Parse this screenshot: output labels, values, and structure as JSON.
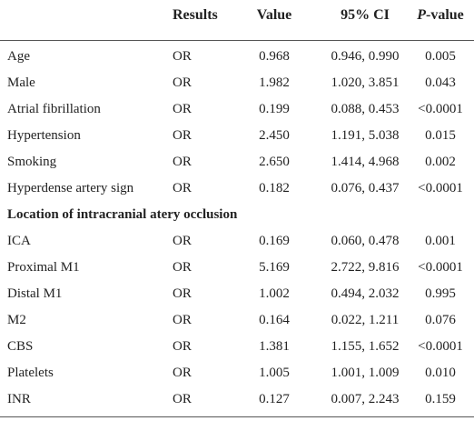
{
  "table": {
    "header": [
      "Results",
      "Value",
      "95% CI",
      "P-value"
    ],
    "rows": [
      {
        "label": "Age",
        "cells": [
          "OR",
          "0.968",
          "0.946, 0.990",
          "0.005"
        ]
      },
      {
        "label": "Male",
        "cells": [
          "OR",
          "1.982",
          "1.020, 3.851",
          "0.043"
        ]
      },
      {
        "label": "Atrial fibrillation",
        "cells": [
          "OR",
          "0.199",
          "0.088, 0.453",
          "<0.0001"
        ]
      },
      {
        "label": "Hypertension",
        "cells": [
          "OR",
          "2.450",
          "1.191, 5.038",
          "0.015"
        ]
      },
      {
        "label": "Smoking",
        "cells": [
          "OR",
          "2.650",
          "1.414, 4.968",
          "0.002"
        ]
      },
      {
        "label": "Hyperdense artery sign",
        "cells": [
          "OR",
          "0.182",
          "0.076, 0.437",
          "<0.0001"
        ]
      },
      {
        "label": "Location of intracranial atery occlusion",
        "section": true
      },
      {
        "label": "ICA",
        "cells": [
          "OR",
          "0.169",
          "0.060, 0.478",
          "0.001"
        ]
      },
      {
        "label": "Proximal M1",
        "cells": [
          "OR",
          "5.169",
          "2.722, 9.816",
          "<0.0001"
        ]
      },
      {
        "label": "Distal M1",
        "cells": [
          "OR",
          "1.002",
          "0.494, 2.032",
          "0.995"
        ]
      },
      {
        "label": "M2",
        "cells": [
          "OR",
          "0.164",
          "0.022, 1.211",
          "0.076"
        ]
      },
      {
        "label": "CBS",
        "cells": [
          "OR",
          "1.381",
          "1.155, 1.652",
          "<0.0001"
        ]
      },
      {
        "label": "Platelets",
        "cells": [
          "OR",
          "1.005",
          "1.001, 1.009",
          "0.010"
        ]
      },
      {
        "label": "INR",
        "cells": [
          "OR",
          "0.127",
          "0.007, 2.243",
          "0.159"
        ]
      }
    ]
  }
}
